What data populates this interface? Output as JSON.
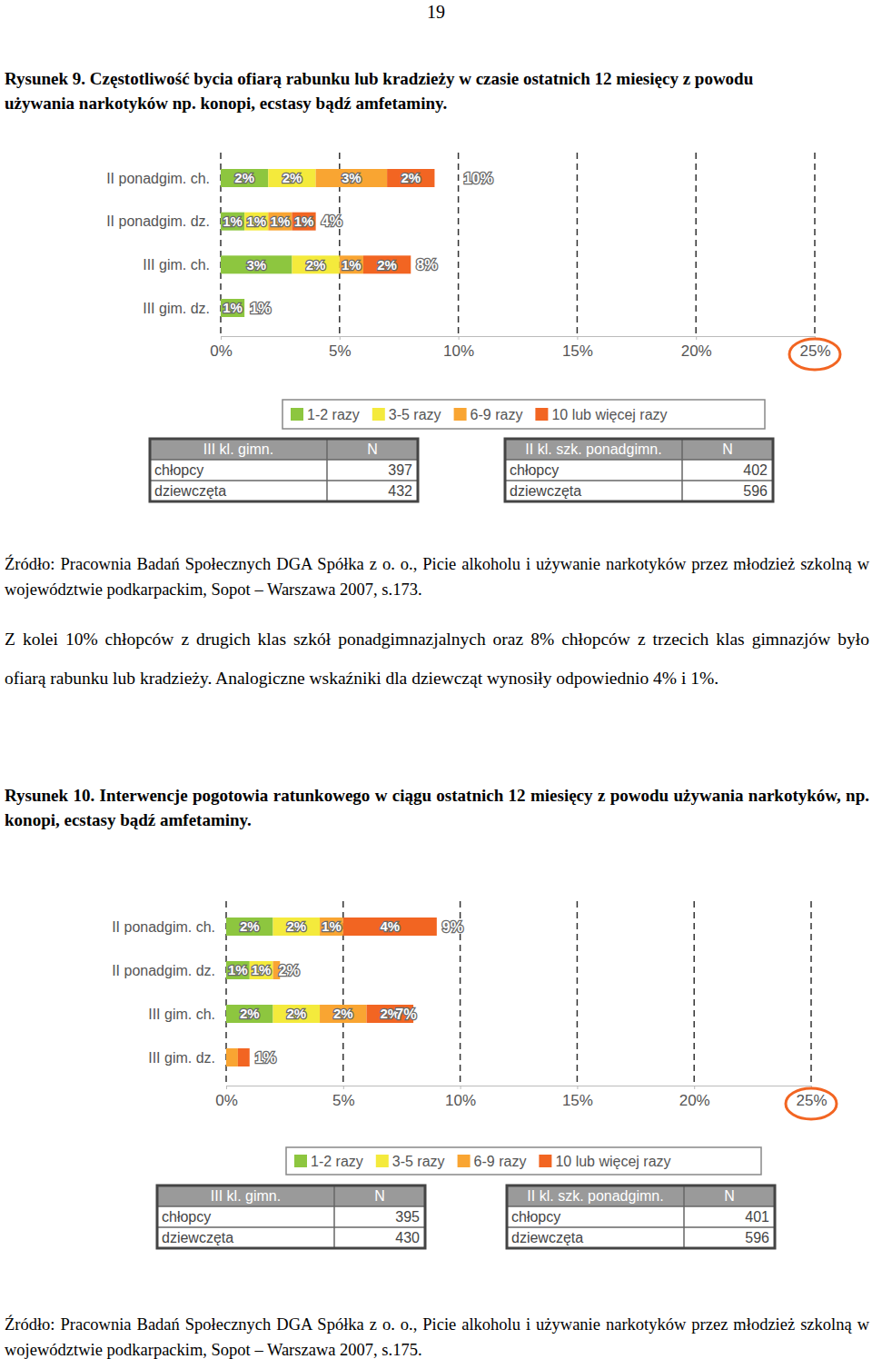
{
  "page_number": "19",
  "paragraph": "Z kolei 10% chłopców z drugich klas szkół ponadgimnazjalnych oraz 8% chłopców z trzecich klas gimnazjów było ofiarą rabunku lub kradzieży. Analogiczne wskaźniki dla dziewcząt wynosiły odpowiednio 4% i 1%.",
  "figures": [
    {
      "caption": "Rysunek 9. Częstotliwość bycia ofiarą rabunku lub kradzieży w czasie ostatnich 12 miesięcy z powodu używania narkotyków np. konopi, ecstasy bądź amfetaminy.",
      "tables": [
        {
          "header": [
            "III kl. gimn.",
            "N"
          ],
          "rows": [
            [
              "chłopcy",
              397
            ],
            [
              "dziewczęta",
              432
            ]
          ]
        },
        {
          "header": [
            "II kl. szk. ponadgimn.",
            "N"
          ],
          "rows": [
            [
              "chłopcy",
              402
            ],
            [
              "dziewczęta",
              596
            ]
          ]
        }
      ],
      "source": "Źródło: Pracownia Badań Społecznych DGA Spółka z o. o., Picie alkoholu i używanie narkotyków przez młodzież szkolną w województwie podkarpackim, Sopot – Warszawa 2007, s.173."
    },
    {
      "caption": "Rysunek 10. Interwencje pogotowia ratunkowego w ciągu ostatnich 12 miesięcy z powodu używania narkotyków, np. konopi, ecstasy bądź amfetaminy.",
      "tables": [
        {
          "header": [
            "III kl. gimn.",
            "N"
          ],
          "rows": [
            [
              "chłopcy",
              395
            ],
            [
              "dziewczęta",
              430
            ]
          ]
        },
        {
          "header": [
            "II kl. szk. ponadgimn.",
            "N"
          ],
          "rows": [
            [
              "chłopcy",
              401
            ],
            [
              "dziewczęta",
              596
            ]
          ]
        }
      ],
      "source": "Źródło: Pracownia Badań Społecznych DGA Spółka z o. o., Picie alkoholu i używanie narkotyków przez młodzież szkolną w województwie podkarpackim, Sopot – Warszawa 2007, s.175."
    }
  ],
  "chart_data": [
    {
      "type": "bar",
      "orientation": "horizontal",
      "stacked": true,
      "data_labels": true,
      "grid": true,
      "legend": "bottom",
      "categories": [
        "II ponadgim. ch.",
        "II ponadgim. dz.",
        "III gim. ch.",
        "III gim. dz."
      ],
      "series": [
        {
          "name": "1-2 razy",
          "color": "#8dc63f",
          "values": [
            2,
            1,
            3,
            1
          ],
          "value_labels": [
            "2%",
            "1%",
            "3%",
            "1%"
          ]
        },
        {
          "name": "3-5 razy",
          "color": "#f4ea3c",
          "values": [
            2,
            1,
            2,
            null
          ],
          "value_labels": [
            "2%",
            "1%",
            "2%",
            null
          ]
        },
        {
          "name": "6-9 razy",
          "color": "#f9a532",
          "values": [
            3,
            1,
            1,
            null
          ],
          "value_labels": [
            "3%",
            "1%",
            "1%",
            null
          ]
        },
        {
          "name": "10 lub więcej razy",
          "color": "#f26522",
          "values": [
            2,
            1,
            2,
            null
          ],
          "value_labels": [
            "2%",
            "1%",
            "2%",
            null
          ]
        }
      ],
      "totals": [
        10,
        4,
        8,
        1
      ],
      "total_labels": [
        "10%",
        "4%",
        "8%",
        "1%"
      ],
      "xlim": [
        0,
        25
      ],
      "xticks": [
        {
          "value": 0,
          "label": "0%"
        },
        {
          "value": 5,
          "label": "5%"
        },
        {
          "value": 10,
          "label": "10%"
        },
        {
          "value": 15,
          "label": "15%"
        },
        {
          "value": 20,
          "label": "20%"
        },
        {
          "value": 25,
          "label": "25%"
        }
      ]
    },
    {
      "type": "bar",
      "orientation": "horizontal",
      "stacked": true,
      "data_labels": true,
      "grid": true,
      "legend": "bottom",
      "categories": [
        "II ponadgim. ch.",
        "II ponadgim. dz.",
        "III gim. ch.",
        "III gim. dz."
      ],
      "series": [
        {
          "name": "1-2 razy",
          "color": "#8dc63f",
          "values": [
            2,
            1,
            2,
            null
          ],
          "value_labels": [
            "2%",
            "1%",
            "2%",
            null
          ]
        },
        {
          "name": "3-5 razy",
          "color": "#f4ea3c",
          "values": [
            2,
            1,
            2,
            null
          ],
          "value_labels": [
            "2%",
            "1%",
            "2%",
            null
          ]
        },
        {
          "name": "6-9 razy",
          "color": "#f9a532",
          "values": [
            1,
            0.3,
            2,
            0.5
          ],
          "value_labels": [
            "1%",
            null,
            "2%",
            null
          ]
        },
        {
          "name": "10 lub więcej razy",
          "color": "#f26522",
          "values": [
            4,
            null,
            2,
            0.5
          ],
          "value_labels": [
            "4%",
            null,
            "2%",
            null
          ]
        }
      ],
      "totals": [
        9,
        2,
        7,
        1
      ],
      "total_labels": [
        "9%",
        "2%",
        "7%",
        "1%"
      ],
      "xlim": [
        0,
        25
      ],
      "xticks": [
        {
          "value": 0,
          "label": "0%"
        },
        {
          "value": 5,
          "label": "5%"
        },
        {
          "value": 10,
          "label": "10%"
        },
        {
          "value": 15,
          "label": "15%"
        },
        {
          "value": 20,
          "label": "20%"
        },
        {
          "value": 25,
          "label": "25%"
        }
      ]
    }
  ]
}
